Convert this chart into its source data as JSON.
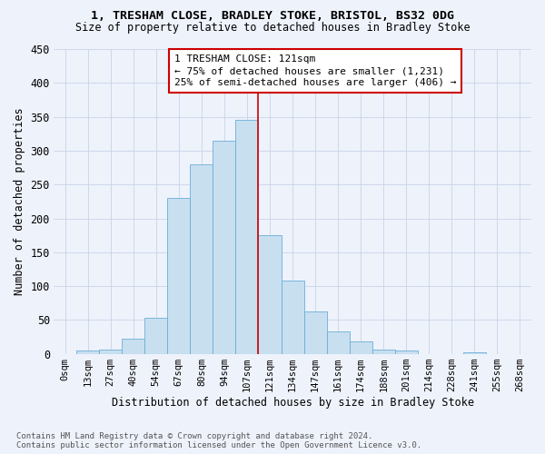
{
  "title": "1, TRESHAM CLOSE, BRADLEY STOKE, BRISTOL, BS32 0DG",
  "subtitle": "Size of property relative to detached houses in Bradley Stoke",
  "xlabel": "Distribution of detached houses by size in Bradley Stoke",
  "ylabel": "Number of detached properties",
  "footnote1": "Contains HM Land Registry data © Crown copyright and database right 2024.",
  "footnote2": "Contains public sector information licensed under the Open Government Licence v3.0.",
  "annotation_title": "1 TRESHAM CLOSE: 121sqm",
  "annotation_line1": "← 75% of detached houses are smaller (1,231)",
  "annotation_line2": "25% of semi-detached houses are larger (406) →",
  "categories": [
    "0sqm",
    "13sqm",
    "27sqm",
    "40sqm",
    "54sqm",
    "67sqm",
    "80sqm",
    "94sqm",
    "107sqm",
    "121sqm",
    "134sqm",
    "147sqm",
    "161sqm",
    "174sqm",
    "188sqm",
    "201sqm",
    "214sqm",
    "228sqm",
    "241sqm",
    "255sqm",
    "268sqm"
  ],
  "values": [
    0,
    5,
    7,
    22,
    53,
    230,
    280,
    315,
    345,
    175,
    108,
    63,
    33,
    18,
    6,
    5,
    0,
    0,
    2,
    0,
    0
  ],
  "bar_color": "#c8dff0",
  "bar_edge_color": "#6baed6",
  "highlight_color": "#cc0000",
  "background_color": "#eef2fb",
  "ylim": [
    0,
    450
  ],
  "yticks": [
    0,
    50,
    100,
    150,
    200,
    250,
    300,
    350,
    400,
    450
  ],
  "property_sqm_label": "121sqm",
  "red_line_position": "left_of_121sqm"
}
